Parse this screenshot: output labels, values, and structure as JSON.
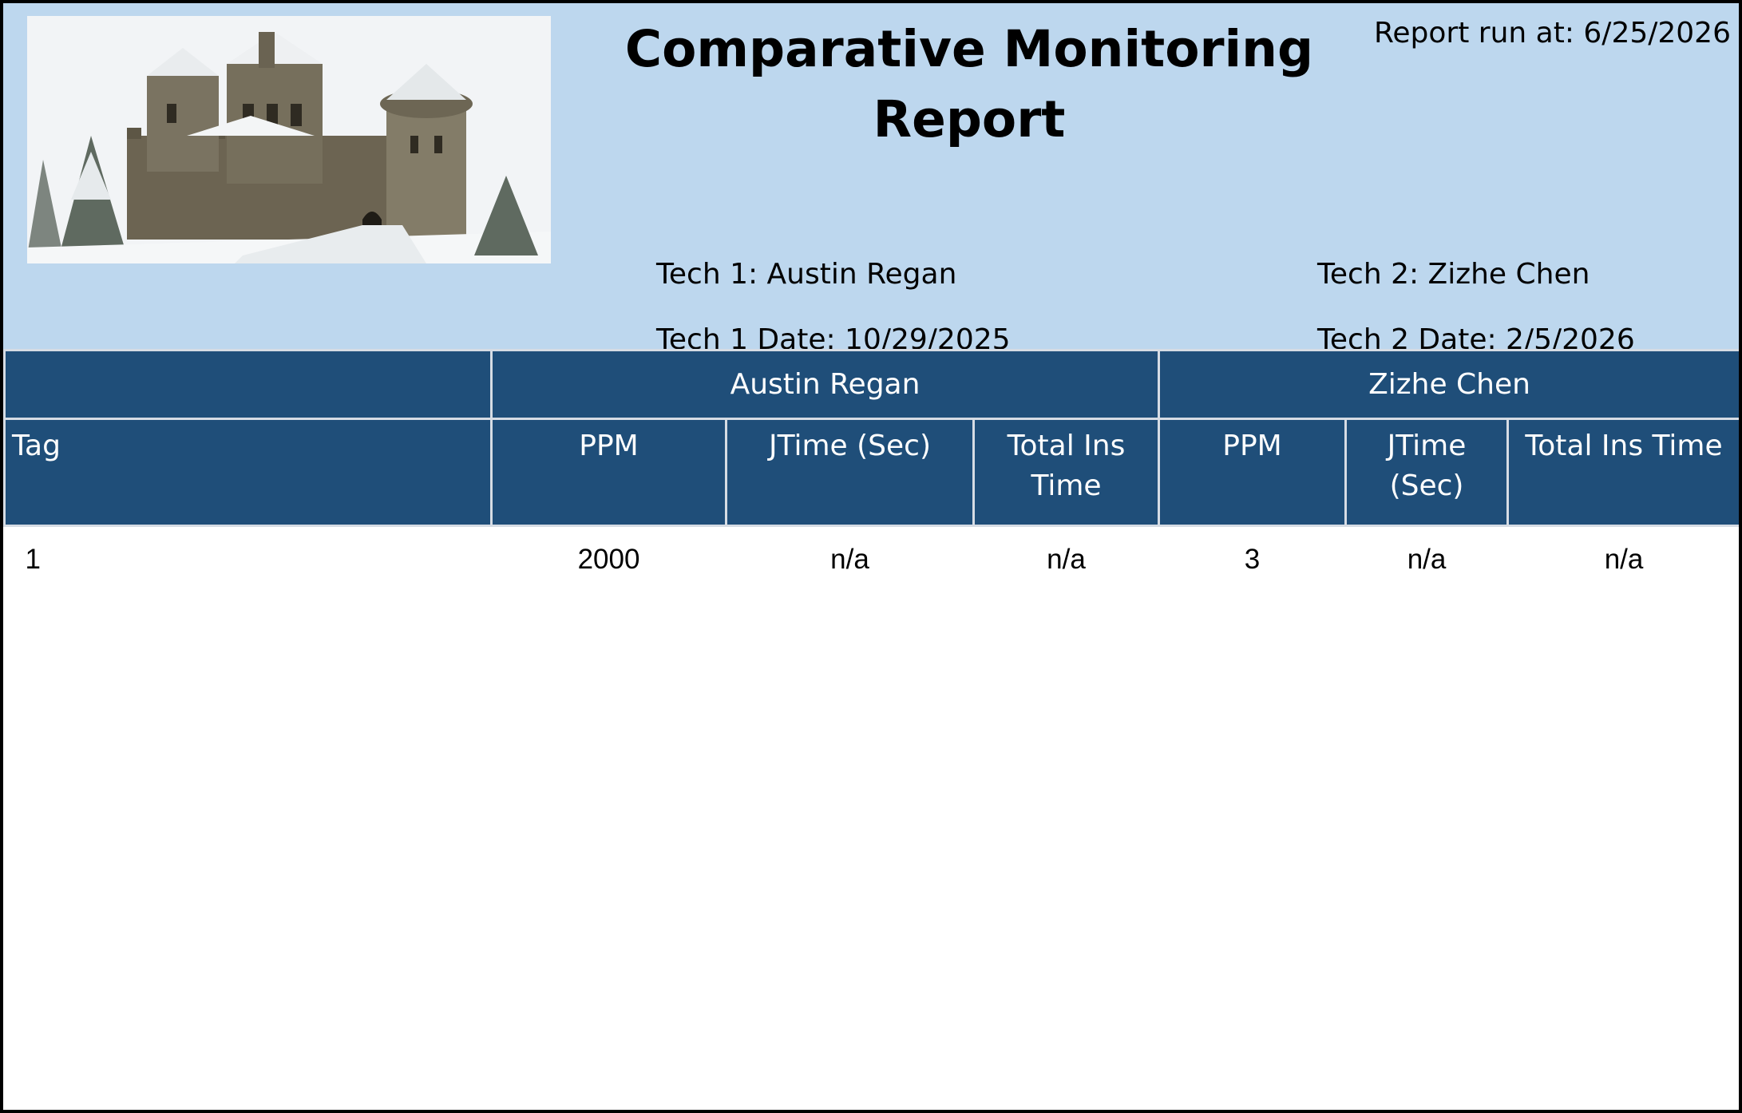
{
  "header": {
    "title": "Comparative Monitoring Report",
    "report_run_at": "Report run at: 6/25/2026",
    "image_icon": "castle-photo",
    "tech1_name": "Tech 1: Austin Regan",
    "tech1_date": "Tech 1 Date: 10/29/2025",
    "tech2_name": "Tech 2: Zizhe Chen",
    "tech2_date": "Tech 2 Date: 2/5/2026",
    "band_color": "#bdd7ee"
  },
  "table": {
    "header_color": "#1f4e79",
    "groups": [
      "Austin Regan",
      "Zizhe Chen"
    ],
    "columns": {
      "tag": "Tag",
      "t1_ppm": "PPM",
      "t1_jtime": "JTime (Sec)",
      "t1_total": "Total Ins Time",
      "t2_ppm": "PPM",
      "t2_jtime": "JTime (Sec)",
      "t2_total": "Total Ins Time"
    },
    "rows": [
      {
        "tag": "1",
        "t1_ppm": "2000",
        "t1_jtime": "n/a",
        "t1_total": "n/a",
        "t2_ppm": "3",
        "t2_jtime": "n/a",
        "t2_total": "n/a"
      }
    ]
  }
}
